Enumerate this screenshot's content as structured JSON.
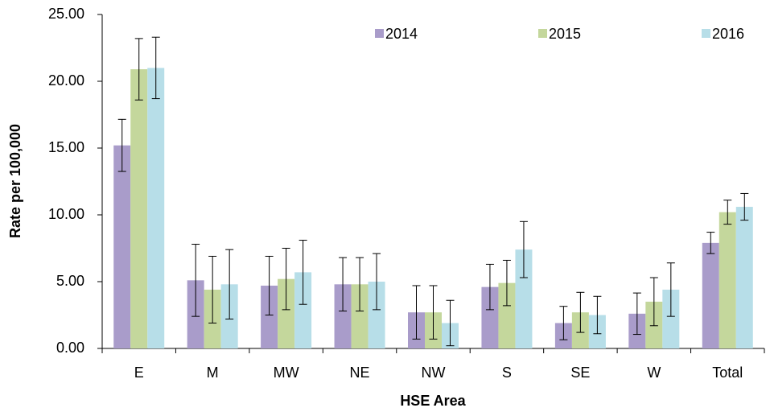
{
  "chart_data": {
    "type": "bar",
    "x_label": "HSE Area",
    "y_label": "Rate per 100,000",
    "categories": [
      "E",
      "M",
      "MW",
      "NE",
      "NW",
      "S",
      "SE",
      "W",
      "Total"
    ],
    "series": [
      {
        "name": "2014",
        "color": "#a99cca",
        "values": [
          15.2,
          5.1,
          4.7,
          4.8,
          2.7,
          4.6,
          1.9,
          2.6,
          7.9
        ],
        "errors": [
          1.95,
          2.7,
          2.2,
          2.0,
          2.0,
          1.7,
          1.25,
          1.55,
          0.8
        ]
      },
      {
        "name": "2015",
        "color": "#c4d79c",
        "values": [
          20.9,
          4.4,
          5.2,
          4.8,
          2.7,
          4.9,
          2.7,
          3.5,
          10.2
        ],
        "errors": [
          2.3,
          2.5,
          2.3,
          2.0,
          2.0,
          1.7,
          1.5,
          1.8,
          0.9
        ]
      },
      {
        "name": "2016",
        "color": "#b7dee8",
        "values": [
          21.0,
          4.8,
          5.7,
          5.0,
          1.9,
          7.4,
          2.5,
          4.4,
          10.6
        ],
        "errors": [
          2.3,
          2.6,
          2.4,
          2.1,
          1.7,
          2.1,
          1.4,
          2.0,
          1.0
        ]
      }
    ],
    "ylim": [
      0,
      25
    ],
    "yticks": [
      {
        "value": 0,
        "label": "0.00"
      },
      {
        "value": 5,
        "label": "5.00"
      },
      {
        "value": 10,
        "label": "10.00"
      },
      {
        "value": 15,
        "label": "15.00"
      },
      {
        "value": 20,
        "label": "20.00"
      },
      {
        "value": 25,
        "label": "25.00"
      }
    ],
    "grid": false,
    "legend": "top"
  }
}
